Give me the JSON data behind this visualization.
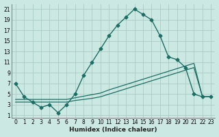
{
  "bg_color": "#cce8e2",
  "grid_color": "#aaccC4",
  "line_color": "#1a6e64",
  "xlabel": "Humidex (Indice chaleur)",
  "xlim": [
    -0.5,
    23.5
  ],
  "ylim": [
    0.5,
    22
  ],
  "xticks": [
    0,
    1,
    2,
    3,
    4,
    5,
    6,
    7,
    8,
    9,
    10,
    11,
    12,
    13,
    14,
    15,
    16,
    17,
    18,
    19,
    20,
    21,
    22,
    23
  ],
  "yticks": [
    1,
    3,
    5,
    7,
    9,
    11,
    13,
    15,
    17,
    19,
    21
  ],
  "line1_x": [
    0,
    1,
    2,
    3,
    4,
    5,
    6,
    7,
    8,
    9,
    10,
    11,
    12,
    13,
    14,
    15,
    16,
    17,
    18,
    19,
    20,
    21,
    22,
    23
  ],
  "line1_y": [
    7,
    4.5,
    3.5,
    2.5,
    3.0,
    1.5,
    3.0,
    5.0,
    8.5,
    11.0,
    13.5,
    16.0,
    18.0,
    19.5,
    21.0,
    20.0,
    19.0,
    16.0,
    12.0,
    11.5,
    10.0,
    5.0,
    4.5,
    4.5
  ],
  "line2_x": [
    0,
    1,
    2,
    3,
    4,
    5,
    6,
    7,
    8,
    9,
    10,
    11,
    12,
    13,
    14,
    15,
    16,
    17,
    18,
    19,
    20,
    21,
    22,
    23
  ],
  "line2_y": [
    3.5,
    3.5,
    3.5,
    3.5,
    3.5,
    3.5,
    3.5,
    3.8,
    4.0,
    4.2,
    4.5,
    5.0,
    5.5,
    6.0,
    6.5,
    7.0,
    7.5,
    8.0,
    8.5,
    9.0,
    9.5,
    10.0,
    4.5,
    4.5
  ],
  "line3_x": [
    0,
    1,
    2,
    3,
    4,
    5,
    6,
    7,
    8,
    9,
    10,
    11,
    12,
    13,
    14,
    15,
    16,
    17,
    18,
    19,
    20,
    21,
    22,
    23
  ],
  "line3_y": [
    4.0,
    4.0,
    4.0,
    4.0,
    4.0,
    4.0,
    4.0,
    4.3,
    4.6,
    4.9,
    5.2,
    5.8,
    6.3,
    6.8,
    7.3,
    7.8,
    8.3,
    8.8,
    9.3,
    9.8,
    10.3,
    10.8,
    4.5,
    4.5
  ]
}
